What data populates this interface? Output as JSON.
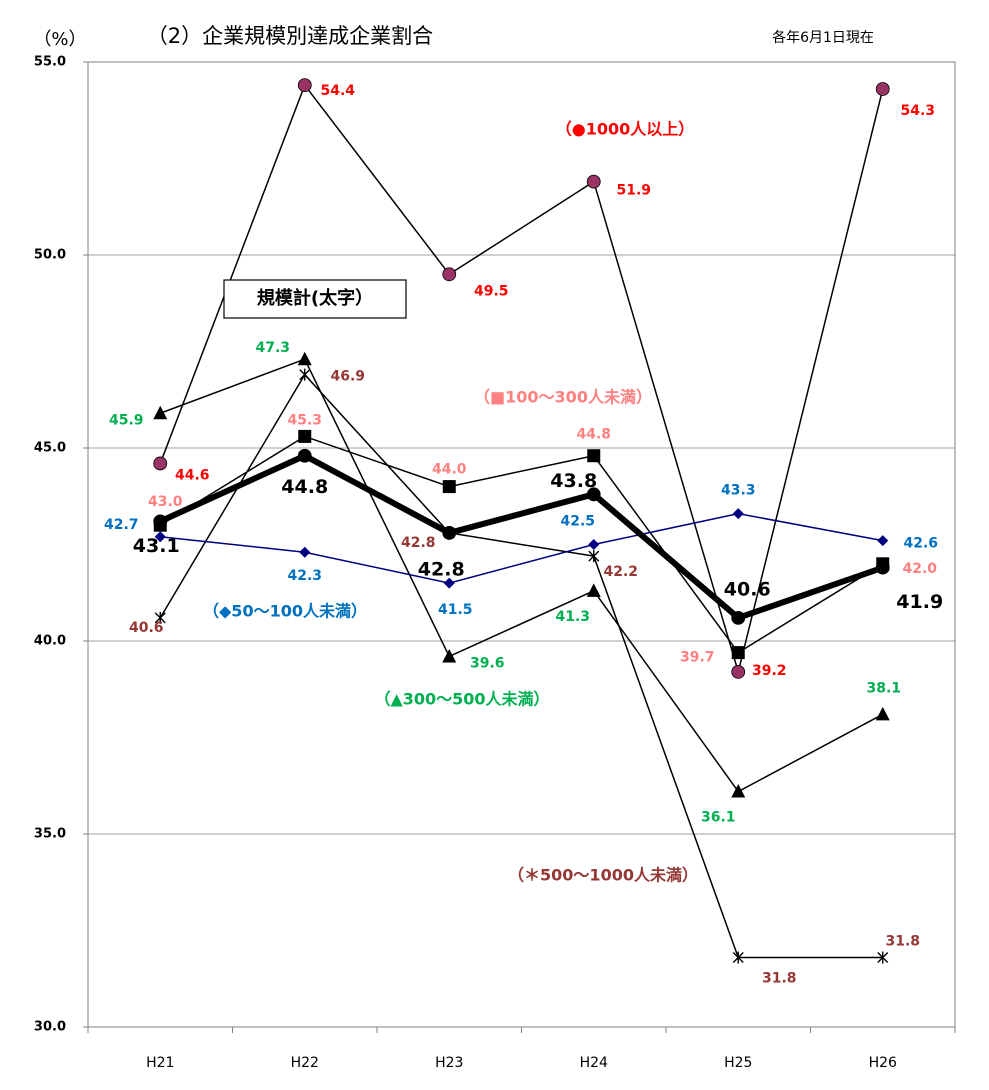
{
  "chart_data": {
    "type": "line",
    "title": "（2）企業規模別達成企業割合",
    "y_label": "（%）",
    "note": "各年6月1日現在",
    "categories": [
      "H21",
      "H22",
      "H23",
      "H24",
      "H25",
      "H26"
    ],
    "ylim": [
      30,
      55
    ],
    "yticks": [
      {
        "value": 30,
        "label": "30.0"
      },
      {
        "value": 35,
        "label": "35.0"
      },
      {
        "value": 40,
        "label": "40.0"
      },
      {
        "value": 45,
        "label": "45.0"
      },
      {
        "value": 50,
        "label": "50.0"
      },
      {
        "value": 55,
        "label": "55.0"
      }
    ],
    "grid": true,
    "series": [
      {
        "name": "（●1000人以上）",
        "marker": "circle",
        "color": "#993366",
        "line_color": "#000000",
        "label_color": "#ff0000",
        "values": [
          44.6,
          54.4,
          49.5,
          51.9,
          39.2,
          54.3
        ],
        "value_labels": [
          "44.6",
          "54.4",
          "49.5",
          "51.9",
          "39.2",
          "54.3"
        ]
      },
      {
        "name": "（■100～300人未満）",
        "marker": "square",
        "color": "#000000",
        "line_color": "#000000",
        "label_color": "#ff8080",
        "values": [
          43.0,
          45.3,
          44.0,
          44.8,
          39.7,
          42.0
        ],
        "value_labels": [
          "43.0",
          "45.3",
          "44.0",
          "44.8",
          "39.7",
          "42.0"
        ]
      },
      {
        "name": "（▲300～500人未満）",
        "marker": "triangle",
        "color": "#000000",
        "line_color": "#000000",
        "label_color": "#00b050",
        "values": [
          45.9,
          47.3,
          39.6,
          41.3,
          36.1,
          38.1
        ],
        "value_labels": [
          "45.9",
          "47.3",
          "39.6",
          "41.3",
          "36.1",
          "38.1"
        ]
      },
      {
        "name": "（＊500～1000人未満）",
        "marker": "star",
        "color": "#000000",
        "line_color": "#000000",
        "label_color": "#953735",
        "values": [
          40.6,
          46.9,
          42.8,
          42.2,
          31.8,
          31.8
        ],
        "value_labels": [
          "40.6",
          "46.9",
          "42.8",
          "42.2",
          "31.8",
          "31.8"
        ]
      },
      {
        "name": "（◆50～100人未満）",
        "marker": "diamond",
        "color": "#000080",
        "line_color": "#000080",
        "label_color": "#0070c0",
        "values": [
          42.7,
          42.3,
          41.5,
          42.5,
          43.3,
          42.6
        ],
        "value_labels": [
          "42.7",
          "42.3",
          "41.5",
          "42.5",
          "43.3",
          "42.6"
        ]
      },
      {
        "name": "規模計(太字）",
        "marker": "circle",
        "color": "#000000",
        "line_color": "#000000",
        "label_color": "#000000",
        "values": [
          43.1,
          44.8,
          42.8,
          43.8,
          40.6,
          41.9
        ],
        "value_labels": [
          "43.1",
          "44.8",
          "42.8",
          "43.8",
          "40.6",
          "41.9"
        ]
      }
    ]
  }
}
